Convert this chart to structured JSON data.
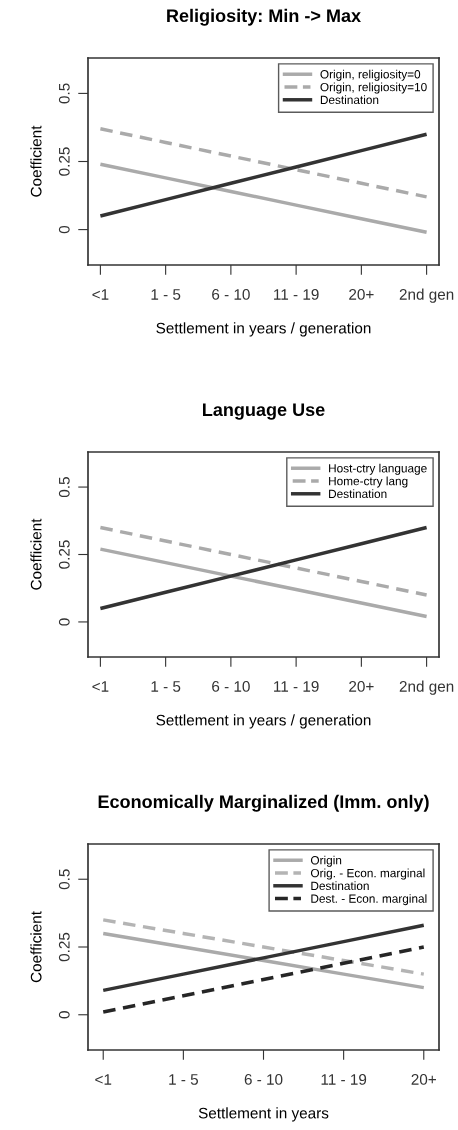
{
  "chart_data": [
    {
      "type": "line",
      "title": "Religiosity: Min -> Max",
      "xlabel": "Settlement in years / generation",
      "ylabel": "Coefficient",
      "categories": [
        "<1",
        "1 - 5",
        "6 - 10",
        "11 - 19",
        "20+",
        "2nd gen"
      ],
      "ylim": [
        -0.13,
        0.63
      ],
      "yticks": [
        0,
        0.25,
        0.5
      ],
      "grid": false,
      "legend": "top right",
      "series": [
        {
          "name": "Origin, religiosity=0",
          "color": "#aaaaaa",
          "line_style": "solid",
          "values": [
            0.24,
            0.19,
            0.14,
            0.09,
            0.04,
            -0.01
          ]
        },
        {
          "name": "Origin, religiosity=10",
          "color": "#aaaaaa",
          "line_style": "dashed",
          "values": [
            0.37,
            0.32,
            0.27,
            0.22,
            0.17,
            0.12
          ]
        },
        {
          "name": "Destination",
          "color": "#333333",
          "line_style": "solid",
          "values": [
            0.05,
            0.11,
            0.17,
            0.23,
            0.29,
            0.35
          ]
        }
      ]
    },
    {
      "type": "line",
      "title": "Language Use",
      "xlabel": "Settlement in years / generation",
      "ylabel": "Coefficient",
      "categories": [
        "<1",
        "1 - 5",
        "6 - 10",
        "11 - 19",
        "20+",
        "2nd gen"
      ],
      "ylim": [
        -0.13,
        0.63
      ],
      "yticks": [
        0,
        0.25,
        0.5
      ],
      "grid": false,
      "legend": "top right",
      "series": [
        {
          "name": "Host-ctry language",
          "color": "#aaaaaa",
          "line_style": "solid",
          "values": [
            0.27,
            0.22,
            0.17,
            0.12,
            0.07,
            0.02
          ]
        },
        {
          "name": "Home-ctry lang",
          "color": "#aaaaaa",
          "line_style": "dashed",
          "values": [
            0.35,
            0.3,
            0.25,
            0.2,
            0.15,
            0.1
          ]
        },
        {
          "name": "Destination",
          "color": "#333333",
          "line_style": "solid",
          "values": [
            0.05,
            0.11,
            0.17,
            0.23,
            0.29,
            0.35
          ]
        }
      ]
    },
    {
      "type": "line",
      "title": "Economically Marginalized (Imm. only)",
      "xlabel": "Settlement in years",
      "ylabel": "Coefficient",
      "categories": [
        "<1",
        "1 - 5",
        "6 - 10",
        "11 - 19",
        "20+"
      ],
      "ylim": [
        -0.13,
        0.63
      ],
      "yticks": [
        0,
        0.25,
        0.5
      ],
      "grid": false,
      "legend": "top right",
      "series": [
        {
          "name": "Origin",
          "color": "#aaaaaa",
          "line_style": "solid",
          "values": [
            0.3,
            0.25,
            0.2,
            0.15,
            0.1
          ]
        },
        {
          "name": "Orig. - Econ. marginal",
          "color": "#b4b4b4",
          "line_style": "dashed",
          "values": [
            0.35,
            0.3,
            0.25,
            0.2,
            0.15
          ]
        },
        {
          "name": "Destination",
          "color": "#333333",
          "line_style": "solid",
          "values": [
            0.09,
            0.15,
            0.21,
            0.27,
            0.33
          ]
        },
        {
          "name": "Dest. - Econ. marginal",
          "color": "#262626",
          "line_style": "dashed",
          "values": [
            0.01,
            0.07,
            0.13,
            0.19,
            0.25
          ]
        }
      ]
    }
  ]
}
